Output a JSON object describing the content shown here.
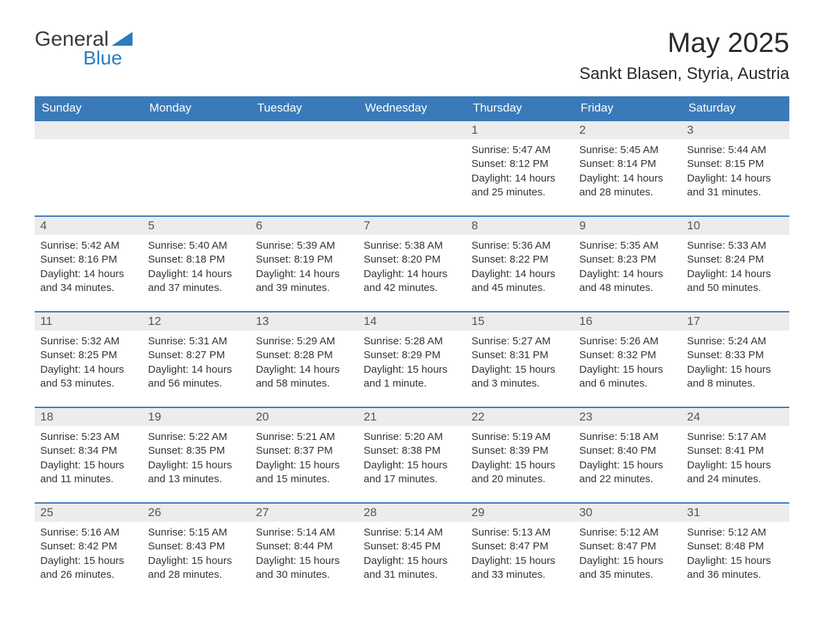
{
  "logo": {
    "text_general": "General",
    "text_blue": "Blue",
    "accent_color": "#2b7cc0"
  },
  "title": "May 2025",
  "location": "Sankt Blasen, Styria, Austria",
  "header_bg": "#3a7ab8",
  "header_text_color": "#ffffff",
  "daynum_bg": "#ececec",
  "border_color": "#3a7ab8",
  "weekdays": [
    "Sunday",
    "Monday",
    "Tuesday",
    "Wednesday",
    "Thursday",
    "Friday",
    "Saturday"
  ],
  "weeks": [
    [
      {
        "empty": true
      },
      {
        "empty": true
      },
      {
        "empty": true
      },
      {
        "empty": true
      },
      {
        "day": "1",
        "sunrise": "Sunrise: 5:47 AM",
        "sunset": "Sunset: 8:12 PM",
        "daylight": "Daylight: 14 hours and 25 minutes."
      },
      {
        "day": "2",
        "sunrise": "Sunrise: 5:45 AM",
        "sunset": "Sunset: 8:14 PM",
        "daylight": "Daylight: 14 hours and 28 minutes."
      },
      {
        "day": "3",
        "sunrise": "Sunrise: 5:44 AM",
        "sunset": "Sunset: 8:15 PM",
        "daylight": "Daylight: 14 hours and 31 minutes."
      }
    ],
    [
      {
        "day": "4",
        "sunrise": "Sunrise: 5:42 AM",
        "sunset": "Sunset: 8:16 PM",
        "daylight": "Daylight: 14 hours and 34 minutes."
      },
      {
        "day": "5",
        "sunrise": "Sunrise: 5:40 AM",
        "sunset": "Sunset: 8:18 PM",
        "daylight": "Daylight: 14 hours and 37 minutes."
      },
      {
        "day": "6",
        "sunrise": "Sunrise: 5:39 AM",
        "sunset": "Sunset: 8:19 PM",
        "daylight": "Daylight: 14 hours and 39 minutes."
      },
      {
        "day": "7",
        "sunrise": "Sunrise: 5:38 AM",
        "sunset": "Sunset: 8:20 PM",
        "daylight": "Daylight: 14 hours and 42 minutes."
      },
      {
        "day": "8",
        "sunrise": "Sunrise: 5:36 AM",
        "sunset": "Sunset: 8:22 PM",
        "daylight": "Daylight: 14 hours and 45 minutes."
      },
      {
        "day": "9",
        "sunrise": "Sunrise: 5:35 AM",
        "sunset": "Sunset: 8:23 PM",
        "daylight": "Daylight: 14 hours and 48 minutes."
      },
      {
        "day": "10",
        "sunrise": "Sunrise: 5:33 AM",
        "sunset": "Sunset: 8:24 PM",
        "daylight": "Daylight: 14 hours and 50 minutes."
      }
    ],
    [
      {
        "day": "11",
        "sunrise": "Sunrise: 5:32 AM",
        "sunset": "Sunset: 8:25 PM",
        "daylight": "Daylight: 14 hours and 53 minutes."
      },
      {
        "day": "12",
        "sunrise": "Sunrise: 5:31 AM",
        "sunset": "Sunset: 8:27 PM",
        "daylight": "Daylight: 14 hours and 56 minutes."
      },
      {
        "day": "13",
        "sunrise": "Sunrise: 5:29 AM",
        "sunset": "Sunset: 8:28 PM",
        "daylight": "Daylight: 14 hours and 58 minutes."
      },
      {
        "day": "14",
        "sunrise": "Sunrise: 5:28 AM",
        "sunset": "Sunset: 8:29 PM",
        "daylight": "Daylight: 15 hours and 1 minute."
      },
      {
        "day": "15",
        "sunrise": "Sunrise: 5:27 AM",
        "sunset": "Sunset: 8:31 PM",
        "daylight": "Daylight: 15 hours and 3 minutes."
      },
      {
        "day": "16",
        "sunrise": "Sunrise: 5:26 AM",
        "sunset": "Sunset: 8:32 PM",
        "daylight": "Daylight: 15 hours and 6 minutes."
      },
      {
        "day": "17",
        "sunrise": "Sunrise: 5:24 AM",
        "sunset": "Sunset: 8:33 PM",
        "daylight": "Daylight: 15 hours and 8 minutes."
      }
    ],
    [
      {
        "day": "18",
        "sunrise": "Sunrise: 5:23 AM",
        "sunset": "Sunset: 8:34 PM",
        "daylight": "Daylight: 15 hours and 11 minutes."
      },
      {
        "day": "19",
        "sunrise": "Sunrise: 5:22 AM",
        "sunset": "Sunset: 8:35 PM",
        "daylight": "Daylight: 15 hours and 13 minutes."
      },
      {
        "day": "20",
        "sunrise": "Sunrise: 5:21 AM",
        "sunset": "Sunset: 8:37 PM",
        "daylight": "Daylight: 15 hours and 15 minutes."
      },
      {
        "day": "21",
        "sunrise": "Sunrise: 5:20 AM",
        "sunset": "Sunset: 8:38 PM",
        "daylight": "Daylight: 15 hours and 17 minutes."
      },
      {
        "day": "22",
        "sunrise": "Sunrise: 5:19 AM",
        "sunset": "Sunset: 8:39 PM",
        "daylight": "Daylight: 15 hours and 20 minutes."
      },
      {
        "day": "23",
        "sunrise": "Sunrise: 5:18 AM",
        "sunset": "Sunset: 8:40 PM",
        "daylight": "Daylight: 15 hours and 22 minutes."
      },
      {
        "day": "24",
        "sunrise": "Sunrise: 5:17 AM",
        "sunset": "Sunset: 8:41 PM",
        "daylight": "Daylight: 15 hours and 24 minutes."
      }
    ],
    [
      {
        "day": "25",
        "sunrise": "Sunrise: 5:16 AM",
        "sunset": "Sunset: 8:42 PM",
        "daylight": "Daylight: 15 hours and 26 minutes."
      },
      {
        "day": "26",
        "sunrise": "Sunrise: 5:15 AM",
        "sunset": "Sunset: 8:43 PM",
        "daylight": "Daylight: 15 hours and 28 minutes."
      },
      {
        "day": "27",
        "sunrise": "Sunrise: 5:14 AM",
        "sunset": "Sunset: 8:44 PM",
        "daylight": "Daylight: 15 hours and 30 minutes."
      },
      {
        "day": "28",
        "sunrise": "Sunrise: 5:14 AM",
        "sunset": "Sunset: 8:45 PM",
        "daylight": "Daylight: 15 hours and 31 minutes."
      },
      {
        "day": "29",
        "sunrise": "Sunrise: 5:13 AM",
        "sunset": "Sunset: 8:47 PM",
        "daylight": "Daylight: 15 hours and 33 minutes."
      },
      {
        "day": "30",
        "sunrise": "Sunrise: 5:12 AM",
        "sunset": "Sunset: 8:47 PM",
        "daylight": "Daylight: 15 hours and 35 minutes."
      },
      {
        "day": "31",
        "sunrise": "Sunrise: 5:12 AM",
        "sunset": "Sunset: 8:48 PM",
        "daylight": "Daylight: 15 hours and 36 minutes."
      }
    ]
  ]
}
